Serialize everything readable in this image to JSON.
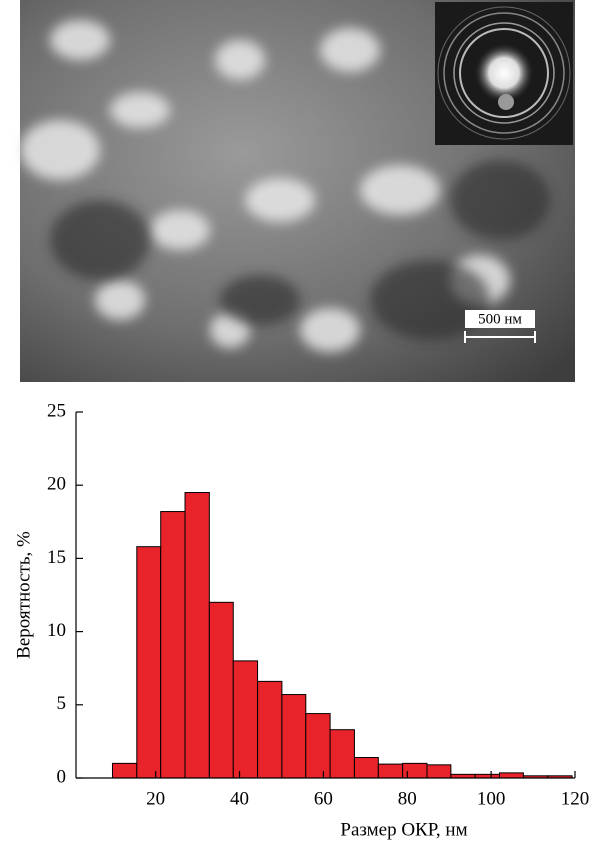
{
  "micrograph": {
    "scale_bar": "500 нм"
  },
  "chart_data": {
    "type": "histogram",
    "x_label": "Размер ОКР, нм",
    "y_label": "Вероятность, %",
    "bins": [
      9.7,
      15.5,
      21.2,
      27.0,
      32.8,
      38.5,
      44.3,
      50.1,
      55.8,
      61.6,
      67.4,
      73.1,
      78.9,
      84.7,
      90.4,
      96.2,
      102.0,
      107.7,
      113.5,
      119.3
    ],
    "values": [
      1.0,
      15.8,
      18.2,
      19.5,
      12.0,
      8.0,
      6.6,
      5.7,
      4.4,
      3.3,
      1.4,
      0.95,
      1.0,
      0.9,
      0.25,
      0.25,
      0.35,
      0.15,
      0.15
    ],
    "color": "#e8232a",
    "xlim": [
      1,
      120
    ],
    "xticks": [
      20,
      40,
      60,
      80,
      100,
      120
    ],
    "ylim": [
      0,
      25
    ],
    "yticks": [
      0,
      5,
      10,
      15,
      20,
      25
    ]
  }
}
